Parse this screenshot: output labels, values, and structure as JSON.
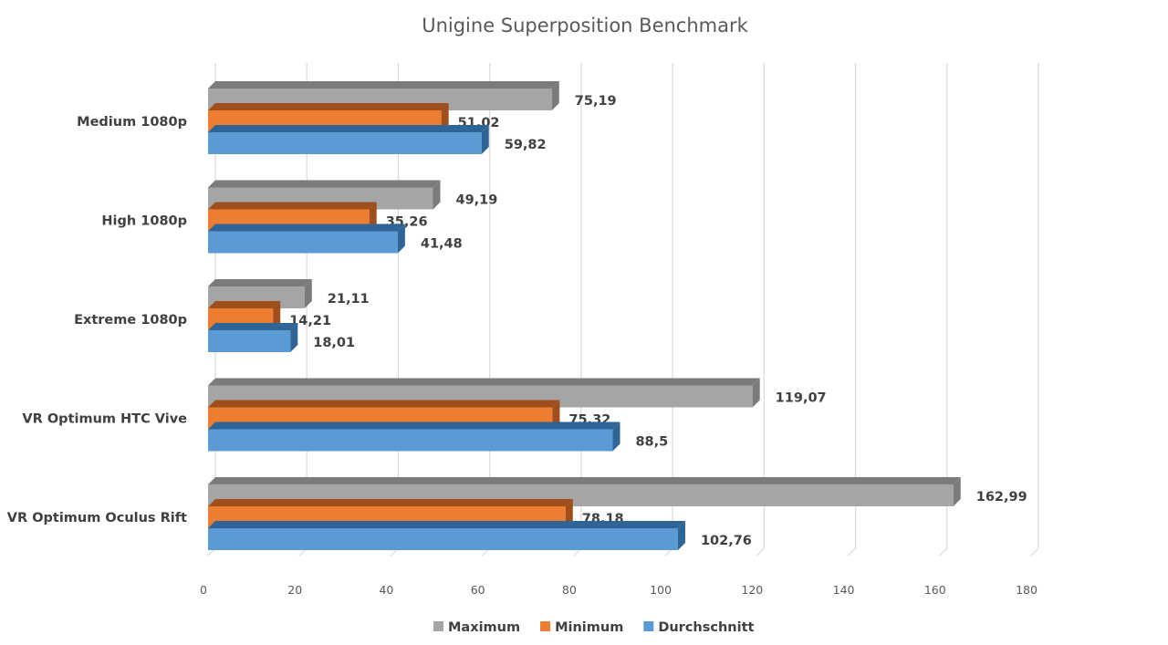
{
  "chart_data": {
    "type": "bar",
    "orientation": "horizontal",
    "style": "3d-clustered",
    "title": "Unigine Superposition Benchmark",
    "categories": [
      "Medium 1080p",
      "High 1080p",
      "Extreme 1080p",
      "VR Optimum HTC Vive",
      "VR Optimum Oculus Rift"
    ],
    "series": [
      {
        "name": "Maximum",
        "values": [
          75.19,
          49.19,
          21.11,
          119.07,
          162.99
        ],
        "labels": [
          "75,19",
          "49,19",
          "21,11",
          "119,07",
          "162,99"
        ],
        "color": "#a5a5a5",
        "side_color": "#7b7b7b"
      },
      {
        "name": "Minimum",
        "values": [
          51.02,
          35.26,
          14.21,
          75.32,
          78.18
        ],
        "labels": [
          "51,02",
          "35,26",
          "14,21",
          "75,32",
          "78,18"
        ],
        "color": "#ed7d31",
        "side_color": "#9e4f1b"
      },
      {
        "name": "Durchschnitt",
        "values": [
          59.82,
          41.48,
          18.01,
          88.5,
          102.76
        ],
        "labels": [
          "59,82",
          "41,48",
          "18,01",
          "88,5",
          "102,76"
        ],
        "color": "#5b9bd5",
        "side_color": "#2e6496"
      }
    ],
    "xlim": [
      0,
      180
    ],
    "xticks": [
      "0",
      "20",
      "40",
      "60",
      "80",
      "100",
      "120",
      "140",
      "160",
      "180"
    ],
    "xlabel": "",
    "ylabel": "",
    "grid": true,
    "legend_position": "bottom"
  }
}
